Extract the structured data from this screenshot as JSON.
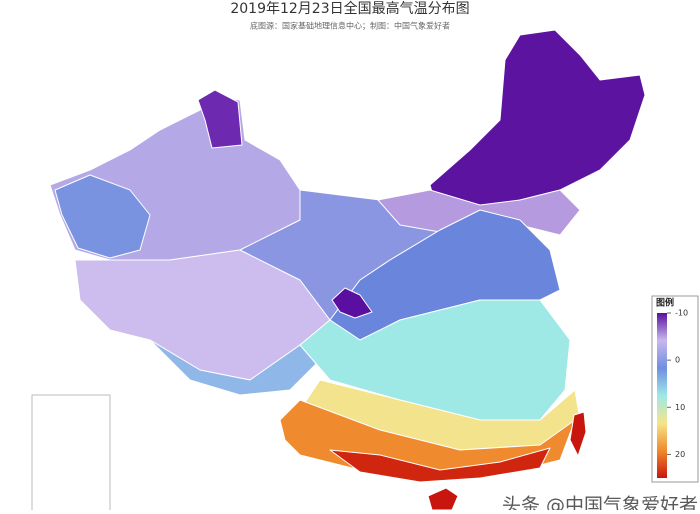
{
  "title": "2019年12月23日全国最高气温分布图",
  "subtitle": "底图源：国家基础地理信息中心；制图：中国气象爱好者",
  "legend": {
    "title": "图例",
    "range": [
      -10,
      25
    ],
    "ticks": [
      -10,
      0,
      10,
      20
    ],
    "colors": [
      "#5a0fa0",
      "#c8b8ec",
      "#6f8fe0",
      "#9ee8e6",
      "#f4e58a",
      "#f08a2c",
      "#c8150e"
    ]
  },
  "watermark": "头条 @中国气象爱好者"
}
